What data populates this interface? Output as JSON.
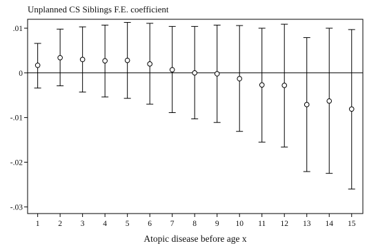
{
  "chart_data": {
    "type": "scatter",
    "title": "Unplanned CS Siblings F.E. coefficient",
    "xlabel": "Atopic disease before age x",
    "ylabel": "",
    "x": [
      1,
      2,
      3,
      4,
      5,
      6,
      7,
      8,
      9,
      10,
      11,
      12,
      13,
      14,
      15
    ],
    "xlim": [
      0.55,
      15.5
    ],
    "ylim": [
      -0.0315,
      0.012
    ],
    "yticks": [
      0.01,
      0,
      -0.01,
      -0.02,
      -0.03
    ],
    "ytick_labels": [
      ".01",
      "0",
      "-.01",
      "-.02",
      "-.03"
    ],
    "reference_line_y": 0,
    "grid": false,
    "legend": "none",
    "series": [
      {
        "estimate": [
          0.0017,
          0.0034,
          0.003,
          0.0027,
          0.0028,
          0.002,
          0.0007,
          0.0,
          -0.0002,
          -0.0013,
          -0.0027,
          -0.0028,
          -0.0071,
          -0.0063,
          -0.0081
        ],
        "ci_upper": [
          0.0066,
          0.0098,
          0.0103,
          0.0107,
          0.0113,
          0.0111,
          0.0104,
          0.0104,
          0.0107,
          0.0106,
          0.01,
          0.0109,
          0.0079,
          0.01,
          0.0097
        ],
        "ci_lower": [
          -0.0034,
          -0.0029,
          -0.0043,
          -0.0054,
          -0.0057,
          -0.007,
          -0.0089,
          -0.0103,
          -0.0111,
          -0.0131,
          -0.0155,
          -0.0166,
          -0.0221,
          -0.0225,
          -0.026
        ]
      }
    ]
  }
}
